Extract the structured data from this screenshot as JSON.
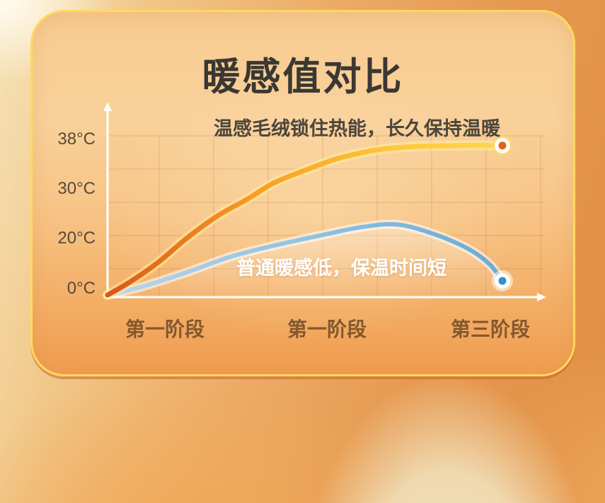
{
  "card": {
    "title": "暖感值对比"
  },
  "chart_data": {
    "type": "line",
    "title": "暖感值对比",
    "grid": true,
    "y_axis": {
      "unit": "°C",
      "ticks": [
        "38°C",
        "30°C",
        "20°C",
        "0°C"
      ],
      "tick_values": [
        38,
        30,
        20,
        0
      ],
      "range": [
        0,
        40
      ]
    },
    "x_axis": {
      "stages": [
        "第一阶段",
        "第一阶段",
        "第三阶段"
      ]
    },
    "series": [
      {
        "name": "温感毛绒",
        "annotation": "温感毛绒锁住热能，长久保持温暖",
        "color": "#ffc93a",
        "gradient": [
          "#d9571a",
          "#f89b24",
          "#ffc93a",
          "#ffd95c"
        ],
        "glow": "rgba(255,238,160,0.55)",
        "marker": {
          "halo": "rgba(255,216,95,0.6)",
          "ring": "#ffffff",
          "dot": "#e2611c"
        },
        "points": [
          {
            "x": 0,
            "t": 0
          },
          {
            "x": 0.05,
            "t": 4.5
          },
          {
            "x": 0.115,
            "t": 11.5
          },
          {
            "x": 0.18,
            "t": 20
          },
          {
            "x": 0.25,
            "t": 24.5
          },
          {
            "x": 0.32,
            "t": 28
          },
          {
            "x": 0.38,
            "t": 31
          },
          {
            "x": 0.45,
            "t": 33
          },
          {
            "x": 0.52,
            "t": 34.8
          },
          {
            "x": 0.59,
            "t": 36
          },
          {
            "x": 0.65,
            "t": 36.6
          },
          {
            "x": 0.72,
            "t": 36.9
          },
          {
            "x": 0.8,
            "t": 37
          },
          {
            "x": 0.9,
            "t": 37
          }
        ]
      },
      {
        "name": "普通暖感",
        "annotation": "普通暖感低，保温时间短",
        "color": "#8cc0e1",
        "gradient": [
          "#b7d6ea",
          "#8cc0e1",
          "#5fa7d5"
        ],
        "glow": "rgba(255,255,255,0.55)",
        "fill_under": "rgba(255,255,255,0.3)",
        "marker": {
          "halo": "rgba(255,255,255,0.5)",
          "ring": "#ffffff",
          "dot": "#2e93c9"
        },
        "points": [
          {
            "x": 0,
            "t": 0
          },
          {
            "x": 0.08,
            "t": 3
          },
          {
            "x": 0.18,
            "t": 8
          },
          {
            "x": 0.28,
            "t": 13.5
          },
          {
            "x": 0.38,
            "t": 17.5
          },
          {
            "x": 0.48,
            "t": 20.5
          },
          {
            "x": 0.58,
            "t": 22.3
          },
          {
            "x": 0.66,
            "t": 22.8
          },
          {
            "x": 0.74,
            "t": 21
          },
          {
            "x": 0.82,
            "t": 16.5
          },
          {
            "x": 0.87,
            "t": 11
          },
          {
            "x": 0.9,
            "t": 5
          }
        ]
      }
    ]
  },
  "colors": {
    "axis": "#fffdf5",
    "grid": "#bb7030",
    "card_border": "#ffd95e",
    "card_bg_top": "#f8cd92",
    "card_bg_bottom": "#f09c4f",
    "title_text": "#3b3732",
    "warm_annotation_text": "#4c463c",
    "cool_annotation_text": "#ffffff",
    "y_tick_text": "#564a38",
    "x_label_text": "#835830"
  }
}
